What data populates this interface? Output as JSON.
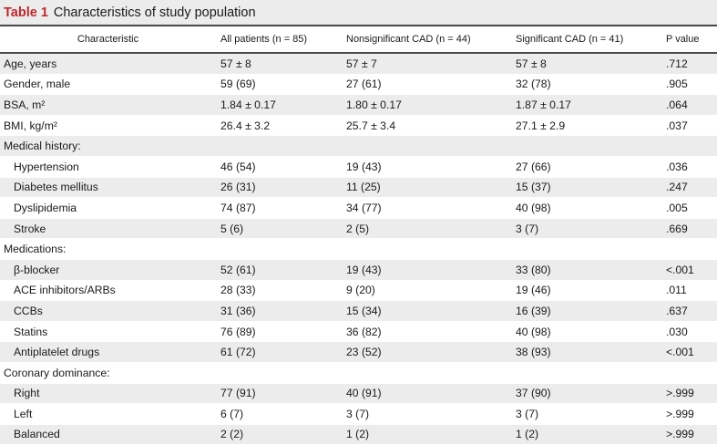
{
  "caption": {
    "label": "Table 1",
    "title": "Characteristics of study population"
  },
  "headers": [
    "Characteristic",
    "All patients (n = 85)",
    "Nonsignificant CAD (n = 44)",
    "Significant CAD (n = 41)",
    "P value"
  ],
  "rows": [
    {
      "label": "Age, years",
      "indent": false,
      "shade": true,
      "all": "57 ± 8",
      "non": "57 ± 7",
      "sig": "57 ± 8",
      "p": ".712"
    },
    {
      "label": "Gender, male",
      "indent": false,
      "shade": false,
      "all": "59 (69)",
      "non": "27 (61)",
      "sig": "32 (78)",
      "p": ".905"
    },
    {
      "label": "BSA, m²",
      "indent": false,
      "shade": true,
      "all": "1.84 ± 0.17",
      "non": "1.80 ± 0.17",
      "sig": "1.87 ± 0.17",
      "p": ".064"
    },
    {
      "label": "BMI, kg/m²",
      "indent": false,
      "shade": false,
      "all": "26.4 ± 3.2",
      "non": "25.7 ± 3.4",
      "sig": "27.1 ± 2.9",
      "p": ".037"
    },
    {
      "label": "Medical history:",
      "indent": false,
      "shade": true,
      "all": "",
      "non": "",
      "sig": "",
      "p": ""
    },
    {
      "label": "Hypertension",
      "indent": true,
      "shade": false,
      "all": "46 (54)",
      "non": "19 (43)",
      "sig": "27 (66)",
      "p": ".036"
    },
    {
      "label": "Diabetes mellitus",
      "indent": true,
      "shade": true,
      "all": "26 (31)",
      "non": "11 (25)",
      "sig": "15 (37)",
      "p": ".247"
    },
    {
      "label": "Dyslipidemia",
      "indent": true,
      "shade": false,
      "all": "74 (87)",
      "non": "34 (77)",
      "sig": "40 (98)",
      "p": ".005"
    },
    {
      "label": "Stroke",
      "indent": true,
      "shade": true,
      "all": "5 (6)",
      "non": "2 (5)",
      "sig": "3 (7)",
      "p": ".669"
    },
    {
      "label": "Medications:",
      "indent": false,
      "shade": false,
      "all": "",
      "non": "",
      "sig": "",
      "p": ""
    },
    {
      "label": "β-blocker",
      "indent": true,
      "shade": true,
      "all": "52 (61)",
      "non": "19 (43)",
      "sig": "33 (80)",
      "p": "<.001"
    },
    {
      "label": "ACE inhibitors/ARBs",
      "indent": true,
      "shade": false,
      "all": "28 (33)",
      "non": "9 (20)",
      "sig": "19 (46)",
      "p": ".011"
    },
    {
      "label": "CCBs",
      "indent": true,
      "shade": true,
      "all": "31 (36)",
      "non": "15 (34)",
      "sig": "16 (39)",
      "p": ".637"
    },
    {
      "label": "Statins",
      "indent": true,
      "shade": false,
      "all": "76 (89)",
      "non": "36 (82)",
      "sig": "40 (98)",
      "p": ".030"
    },
    {
      "label": "Antiplatelet drugs",
      "indent": true,
      "shade": true,
      "all": "61 (72)",
      "non": "23 (52)",
      "sig": "38 (93)",
      "p": "<.001"
    },
    {
      "label": "Coronary dominance:",
      "indent": false,
      "shade": false,
      "all": "",
      "non": "",
      "sig": "",
      "p": ""
    },
    {
      "label": "Right",
      "indent": true,
      "shade": true,
      "all": "77 (91)",
      "non": "40 (91)",
      "sig": "37 (90)",
      "p": ">.999"
    },
    {
      "label": "Left",
      "indent": true,
      "shade": false,
      "all": "6 (7)",
      "non": "3 (7)",
      "sig": "3 (7)",
      "p": ">.999"
    },
    {
      "label": "Balanced",
      "indent": true,
      "shade": true,
      "all": "2 (2)",
      "non": "1 (2)",
      "sig": "1 (2)",
      "p": ">.999"
    }
  ],
  "colors": {
    "caption_red": "#c0272d",
    "shade": "#ececec",
    "rule": "#4a4a4a"
  }
}
